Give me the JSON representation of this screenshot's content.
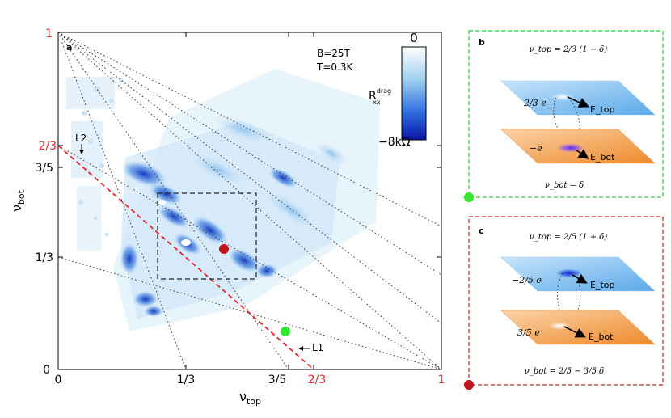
{
  "figure": {
    "panel_a": {
      "label": "a",
      "conditions": {
        "field": "B=25T",
        "temperature": "T=0.3K"
      },
      "colorbar": {
        "top_label": "0",
        "bottom_label": "−8kΩ",
        "quantity_main": "R",
        "quantity_sup": "drag",
        "quantity_sub": "xx"
      },
      "axes": {
        "xlabel_main": "ν",
        "xlabel_sub": "top",
        "ylabel_main": "ν",
        "ylabel_sub": "bot",
        "x_ticks": [
          "0",
          "1/3",
          "3/5"
        ],
        "x_ticks_red": [
          "2/3",
          "1"
        ],
        "y_ticks": [
          "0",
          "1/3",
          "3/5"
        ],
        "y_ticks_red": [
          "2/3",
          "1"
        ]
      },
      "annotations": {
        "l1": "L1",
        "l2": "L2"
      },
      "markers": {
        "red": "red-dot",
        "green": "green-dot"
      }
    },
    "panel_b": {
      "label": "b",
      "top_equation": "ν_top = 2/3 (1 − δ)",
      "top_charge": "2/3 e",
      "top_field": "E_top",
      "bottom_charge": "−e",
      "bottom_field": "E_bot",
      "bottom_equation": "ν_bot = δ",
      "border_color": "#33cc33"
    },
    "panel_c": {
      "label": "c",
      "top_equation": "ν_top = 2/5 (1 + δ)",
      "top_charge": "−2/5 e",
      "top_field": "E_top",
      "bottom_charge": "3/5 e",
      "bottom_field": "E_bot",
      "bottom_equation": "ν_bot = 2/5 − 3/5 δ",
      "border_color": "#cc2222"
    },
    "colors": {
      "red_line": "#e8282a",
      "green_dot": "#33e833",
      "red_dot": "#c0141c",
      "map_blue": "#1448c8"
    }
  }
}
